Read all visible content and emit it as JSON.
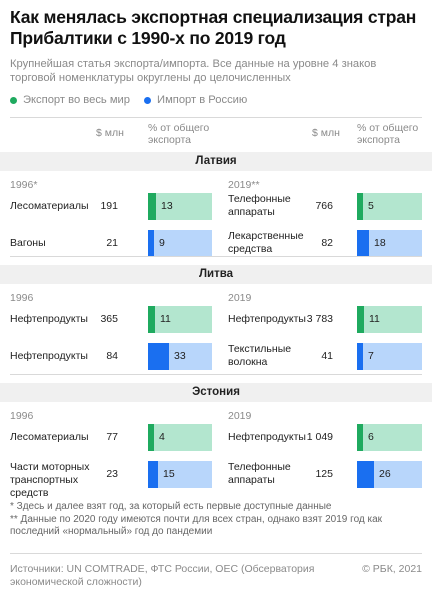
{
  "title": "Как менялась экспортная специализация стран Прибалтики с 1990-х по 2019 год",
  "subtitle": "Крупнейшая статья экспорта/импорта. Все данные на уровне 4 знаков торговой номенклатуры округлены до целочисленных",
  "colors": {
    "export": "#1faa5f",
    "export_bg": "#b3e6cf",
    "import": "#1a6ff0",
    "import_bg": "#b8d6fb"
  },
  "chart_data": {
    "type": "bar",
    "legend": [
      {
        "name": "Экспорт во весь мир",
        "key": "export"
      },
      {
        "name": "Импорт в Россию",
        "key": "import"
      }
    ],
    "columns": {
      "value": "$ млн",
      "share": "% от общего экспорта"
    },
    "share_range": [
      0,
      100
    ],
    "countries": [
      {
        "name": "Латвия",
        "left_year": "1996*",
        "right_year": "2019**",
        "rows": [
          {
            "left": {
              "item": "Лесоматериалы",
              "value": "191",
              "share": 13,
              "type": "export"
            },
            "right": {
              "item": "Телефонные аппараты",
              "value": "766",
              "share": 5,
              "type": "export"
            }
          },
          {
            "left": {
              "item": "Вагоны",
              "value": "21",
              "share": 9,
              "type": "import"
            },
            "right": {
              "item": "Лекарственные средства",
              "value": "82",
              "share": 18,
              "type": "import"
            }
          }
        ]
      },
      {
        "name": "Литва",
        "left_year": "1996",
        "right_year": "2019",
        "rows": [
          {
            "left": {
              "item": "Нефтепродукты",
              "value": "365",
              "share": 11,
              "type": "export"
            },
            "right": {
              "item": "Нефтепродукты",
              "value": "3 783",
              "share": 11,
              "type": "export"
            }
          },
          {
            "left": {
              "item": "Нефтепродукты",
              "value": "84",
              "share": 33,
              "type": "import"
            },
            "right": {
              "item": "Текстильные волокна",
              "value": "41",
              "share": 7,
              "type": "import"
            }
          }
        ]
      },
      {
        "name": "Эстония",
        "left_year": "1996",
        "right_year": "2019",
        "rows": [
          {
            "left": {
              "item": "Лесоматериалы",
              "value": "77",
              "share": 4,
              "type": "export"
            },
            "right": {
              "item": "Нефтепродукты",
              "value": "1 049",
              "share": 6,
              "type": "export"
            }
          },
          {
            "left": {
              "item": "Части моторных транспортных средств",
              "value": "23",
              "share": 15,
              "type": "import"
            },
            "right": {
              "item": "Телефонные аппараты",
              "value": "125",
              "share": 26,
              "type": "import"
            }
          }
        ]
      }
    ]
  },
  "notes": [
    "* Здесь и далее взят год, за который есть первые доступные данные",
    "** Данные по 2020 году имеются почти для всех стран, однако взят 2019 год как последний «нормальный» год до пандемии"
  ],
  "footer": {
    "sources": "Источники: UN COMTRADE, ФТС России, OEC (Обсерватория экономической сложности)",
    "brand": "© РБК, 2021"
  }
}
